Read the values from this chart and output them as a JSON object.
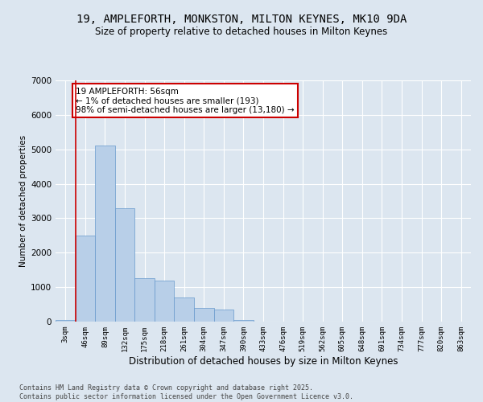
{
  "title1": "19, AMPLEFORTH, MONKSTON, MILTON KEYNES, MK10 9DA",
  "title2": "Size of property relative to detached houses in Milton Keynes",
  "xlabel": "Distribution of detached houses by size in Milton Keynes",
  "ylabel": "Number of detached properties",
  "categories": [
    "3sqm",
    "46sqm",
    "89sqm",
    "132sqm",
    "175sqm",
    "218sqm",
    "261sqm",
    "304sqm",
    "347sqm",
    "390sqm",
    "433sqm",
    "476sqm",
    "519sqm",
    "562sqm",
    "605sqm",
    "648sqm",
    "691sqm",
    "734sqm",
    "777sqm",
    "820sqm",
    "863sqm"
  ],
  "values": [
    50,
    2500,
    5100,
    3300,
    1250,
    1200,
    700,
    400,
    350,
    50,
    0,
    0,
    0,
    0,
    0,
    0,
    0,
    0,
    0,
    0,
    0
  ],
  "bar_color": "#b8cfe8",
  "bar_edge_color": "#6699cc",
  "annotation_text": "19 AMPLEFORTH: 56sqm\n← 1% of detached houses are smaller (193)\n98% of semi-detached houses are larger (13,180) →",
  "annotation_box_color": "#ffffff",
  "annotation_box_edge": "#cc0000",
  "redline_color": "#cc0000",
  "background_color": "#dce6f0",
  "footer_text": "Contains HM Land Registry data © Crown copyright and database right 2025.\nContains public sector information licensed under the Open Government Licence v3.0.",
  "ylim": [
    0,
    7000
  ],
  "yticks": [
    0,
    1000,
    2000,
    3000,
    4000,
    5000,
    6000,
    7000
  ],
  "title1_fontsize": 10,
  "title2_fontsize": 8.5,
  "xlabel_fontsize": 8.5,
  "ylabel_fontsize": 7.5,
  "annotation_fontsize": 7.5,
  "footer_fontsize": 6
}
